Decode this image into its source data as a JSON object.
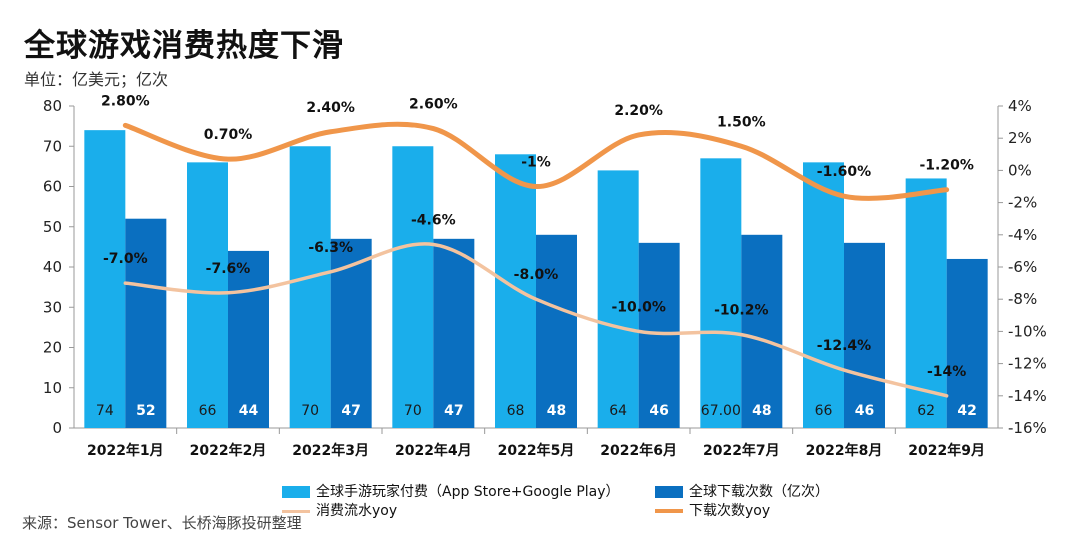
{
  "title": "全球游戏消费热度下滑",
  "unit": "单位：亿美元；亿次",
  "source": "来源：Sensor Tower、长桥海豚投研整理",
  "colors": {
    "bar_light": "#1AAEEB",
    "bar_dark": "#0A6FC0",
    "line_consume": "#F3C39F",
    "line_download": "#F0964A"
  },
  "chart_data": {
    "type": "bar",
    "categories": [
      "2022年1月",
      "2022年2月",
      "2022年3月",
      "2022年4月",
      "2022年5月",
      "2022年6月",
      "2022年7月",
      "2022年8月",
      "2022年9月"
    ],
    "y_left_ticks": [
      "0",
      "10",
      "20",
      "30",
      "40",
      "50",
      "60",
      "70",
      "80"
    ],
    "y_right_ticks": [
      "-16%",
      "-14%",
      "-12%",
      "-10%",
      "-8%",
      "-6%",
      "-4%",
      "-2%",
      "0%",
      "2%",
      "4%"
    ],
    "ylim_left": [
      0,
      80
    ],
    "ylim_right": [
      -16,
      4
    ],
    "series": [
      {
        "name": "全球手游玩家付费（App Store+Google Play）",
        "axis": "left",
        "kind": "bar",
        "values": [
          74,
          66,
          70,
          70,
          68,
          64,
          67,
          66,
          62
        ],
        "labels": [
          "74",
          "66",
          "70",
          "70",
          "68",
          "64",
          "67.00",
          "66",
          "62"
        ]
      },
      {
        "name": "全球下载次数（亿次）",
        "axis": "left",
        "kind": "bar",
        "values": [
          52,
          44,
          47,
          47,
          48,
          46,
          48,
          46,
          42
        ],
        "labels": [
          "52",
          "44",
          "47",
          "47",
          "48",
          "46",
          "48",
          "46",
          "42"
        ]
      },
      {
        "name": "消费流水yoy",
        "axis": "right",
        "kind": "line",
        "values": [
          -7.0,
          -7.6,
          -6.3,
          -4.6,
          -8.0,
          -10.0,
          -10.2,
          -12.4,
          -14.0
        ],
        "labels": [
          "-7.0%",
          "-7.6%",
          "-6.3%",
          "-4.6%",
          "-8.0%",
          "-10.0%",
          "-10.2%",
          "-12.4%",
          "-14%"
        ]
      },
      {
        "name": "下载次数yoy",
        "axis": "right",
        "kind": "line",
        "values": [
          2.8,
          0.7,
          2.4,
          2.6,
          -1.0,
          2.2,
          1.5,
          -1.6,
          -1.2
        ],
        "labels": [
          "2.80%",
          "0.70%",
          "2.40%",
          "2.60%",
          "-1%",
          "2.20%",
          "1.50%",
          "-1.60%",
          "-1.20%"
        ]
      }
    ],
    "legend": [
      "全球手游玩家付费（App Store+Google Play）",
      "全球下载次数（亿次）",
      "消费流水yoy",
      "下载次数yoy"
    ],
    "grid": false,
    "legend_position": "bottom"
  }
}
